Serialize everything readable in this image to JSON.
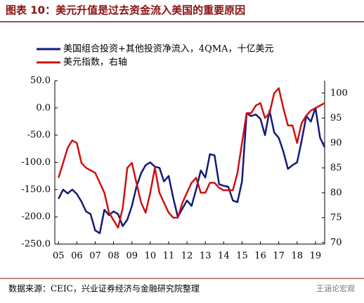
{
  "chart_data": {
    "type": "line",
    "title": "图表 10：美元升值是过去资金流入美国的重要原因",
    "source": "数据来源：CEIC，兴业证券经济与金融研究院整理",
    "watermark": "王涵论宏观",
    "x": [
      2005,
      2005.25,
      2005.5,
      2005.75,
      2006,
      2006.25,
      2006.5,
      2006.75,
      2007,
      2007.25,
      2007.5,
      2007.75,
      2008,
      2008.25,
      2008.5,
      2008.75,
      2009,
      2009.25,
      2009.5,
      2009.75,
      2010,
      2010.25,
      2010.5,
      2010.75,
      2011,
      2011.25,
      2011.5,
      2011.75,
      2012,
      2012.25,
      2012.5,
      2012.75,
      2013,
      2013.25,
      2013.5,
      2013.75,
      2014,
      2014.25,
      2014.5,
      2014.75,
      2015,
      2015.25,
      2015.5,
      2015.75,
      2016,
      2016.25,
      2016.5,
      2016.75,
      2017,
      2017.25,
      2017.5,
      2017.75,
      2018,
      2018.25,
      2018.5,
      2018.75,
      2019,
      2019.25,
      2019.5
    ],
    "series": [
      {
        "name": "美国组合投资+其他投资净流入，4QMA，十亿美元",
        "color": "#141a78",
        "axis": "y",
        "values": [
          -167,
          -150,
          -157,
          -150,
          -158,
          -172,
          -190,
          -195,
          -225,
          -230,
          -187,
          -197,
          -190,
          -195,
          -217,
          -205,
          -180,
          -145,
          -120,
          -105,
          -100,
          -108,
          -110,
          -135,
          -125,
          -165,
          -200,
          -185,
          -170,
          -180,
          -150,
          -115,
          -128,
          -85,
          -87,
          -140,
          -143,
          -145,
          -170,
          -173,
          -135,
          -10,
          -15,
          -12,
          -20,
          -50,
          -5,
          -45,
          -55,
          -80,
          -112,
          -105,
          -100,
          -60,
          -15,
          -25,
          0,
          -55,
          -72
        ]
      },
      {
        "name": "美元指数，右轴",
        "color": "#d01010",
        "axis": "y2",
        "values": [
          83,
          86,
          89,
          90.5,
          90,
          86,
          85,
          84.5,
          84,
          82,
          80,
          76,
          74.5,
          73,
          77,
          85,
          86,
          82,
          78,
          76,
          80,
          85,
          80,
          78,
          76,
          75,
          75,
          78,
          80,
          82,
          83,
          80,
          80,
          82,
          82,
          81,
          80.5,
          80.5,
          80.5,
          84,
          90,
          96,
          96,
          97.5,
          98,
          95,
          96,
          100,
          101,
          97,
          93.5,
          93.5,
          90,
          94,
          95.5,
          96.5,
          97,
          97.5,
          98
        ]
      }
    ],
    "xlim": [
      2004.8,
      2019.5
    ],
    "xticks": [
      {
        "value": 2005,
        "label": "05"
      },
      {
        "value": 2006,
        "label": "06"
      },
      {
        "value": 2007,
        "label": "07"
      },
      {
        "value": 2008,
        "label": "08"
      },
      {
        "value": 2009,
        "label": "09"
      },
      {
        "value": 2010,
        "label": "10"
      },
      {
        "value": 2011,
        "label": "11"
      },
      {
        "value": 2012,
        "label": "12"
      },
      {
        "value": 2013,
        "label": "13"
      },
      {
        "value": 2014,
        "label": "14"
      },
      {
        "value": 2015,
        "label": "15"
      },
      {
        "value": 2016,
        "label": "16"
      },
      {
        "value": 2017,
        "label": "17"
      },
      {
        "value": 2018,
        "label": "18"
      },
      {
        "value": 2019,
        "label": "19"
      }
    ],
    "ylim": [
      -250,
      50
    ],
    "yticks": [
      {
        "value": 50,
        "label": "50.0"
      },
      {
        "value": 0,
        "label": "0.0"
      },
      {
        "value": -50,
        "label": "-50.0"
      },
      {
        "value": -100,
        "label": "-100.0"
      },
      {
        "value": -150,
        "label": "-150.0"
      },
      {
        "value": -200,
        "label": "-200.0"
      },
      {
        "value": -250,
        "label": "-250.0"
      }
    ],
    "y2lim": [
      69.7,
      102.5
    ],
    "y2ticks": [
      70,
      75,
      80,
      85,
      90,
      95,
      100
    ],
    "grid": false
  }
}
